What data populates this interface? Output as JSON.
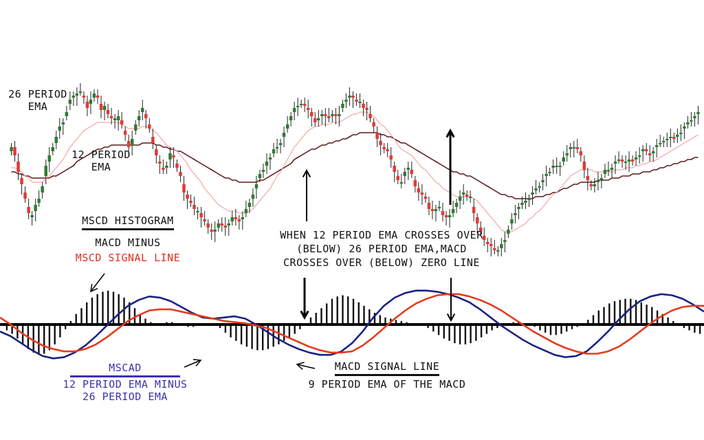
{
  "colors": {
    "bull": "#2e7d32",
    "bear": "#e53935",
    "ema26": "#5a1a1a",
    "ema12": "#f2a6a6",
    "macd": "#1a237e",
    "signal": "#e53a1e",
    "hist": "#111111"
  },
  "annotations": {
    "ema26": [
      "26 PERIOD",
      "EMA"
    ],
    "ema12": [
      "12 PERIOD",
      "EMA"
    ],
    "histogram_title": "MSCD HISTOGRAM",
    "histogram_desc1": "MACD MINUS",
    "histogram_desc2": "MSCD SIGNAL LINE",
    "crossover": [
      "WHEN 12 PERIOD EMA CROSSES OVER",
      "(BELOW) 26 PERIOD EMA,MACD",
      "CROSSES OVER (BELOW) ZERO LINE"
    ],
    "signal_title": "MACD SIGNAL LINE",
    "signal_desc": "9 PERIOD EMA OF THE MACD",
    "macd_title": "MSCAD",
    "macd_desc": [
      "12 PERIOD EMA MINUS",
      "26 PERIOD EMA"
    ]
  },
  "chart_data": [
    {
      "type": "candlestick",
      "title": "",
      "x": [
        1,
        2,
        3,
        4,
        5,
        6,
        7,
        8,
        9,
        10,
        11,
        12,
        13,
        14,
        15,
        16,
        17,
        18,
        19,
        20,
        21,
        22,
        23,
        24,
        25,
        26,
        27,
        28,
        29,
        30,
        31,
        32,
        33,
        34,
        35,
        36,
        37,
        38,
        39,
        40,
        41,
        42,
        43,
        44,
        45,
        46,
        47,
        48,
        49,
        50,
        51,
        52,
        53,
        54,
        55,
        56,
        57,
        58,
        59,
        60,
        61,
        62,
        63,
        64,
        65,
        66,
        67,
        68,
        69,
        70,
        71,
        72,
        73,
        74,
        75,
        76,
        77,
        78,
        79,
        80,
        81,
        82,
        83,
        84,
        85,
        86,
        87,
        88,
        89,
        90,
        91,
        92,
        93,
        94,
        95,
        96,
        97,
        98,
        99,
        100,
        101,
        102,
        103,
        104,
        105,
        106,
        107,
        108,
        109,
        110,
        111,
        112,
        113,
        114,
        115,
        116,
        117,
        118,
        119,
        120,
        121,
        122,
        123,
        124,
        125,
        126,
        127,
        128,
        129,
        130,
        131,
        132,
        133,
        134,
        135,
        136,
        137,
        138,
        139,
        140,
        141,
        142,
        143,
        144,
        145,
        146,
        147,
        148,
        149,
        150,
        151,
        152,
        153,
        154,
        155,
        156,
        157,
        158,
        159,
        160,
        161,
        162,
        163,
        164,
        165,
        166,
        167,
        168,
        169,
        170,
        171,
        172,
        173,
        174,
        175,
        176,
        177,
        178,
        179,
        180,
        181,
        182,
        183,
        184,
        185,
        186,
        187,
        188,
        189,
        190,
        191,
        192,
        193,
        194,
        195,
        196,
        197,
        198,
        199,
        200
      ],
      "close": [
        62,
        58,
        50,
        44,
        37,
        30,
        29,
        34,
        37,
        43,
        53,
        58,
        62,
        67,
        72,
        74,
        79,
        85,
        87,
        88,
        89,
        86,
        81,
        85,
        88,
        86,
        80,
        82,
        78,
        76,
        76,
        77,
        73,
        68,
        62,
        66,
        73,
        77,
        81,
        76,
        71,
        64,
        58,
        54,
        51,
        53,
        59,
        57,
        52,
        48,
        40,
        37,
        35,
        32,
        31,
        28,
        26,
        23,
        21,
        22,
        25,
        24,
        23,
        25,
        28,
        27,
        26,
        28,
        32,
        35,
        39,
        44,
        49,
        51,
        55,
        57,
        61,
        62,
        64,
        69,
        73,
        77,
        81,
        82,
        83,
        82,
        80,
        77,
        74,
        76,
        78,
        77,
        76,
        78,
        77,
        78,
        83,
        85,
        87,
        86,
        84,
        84,
        81,
        80,
        76,
        72,
        66,
        63,
        61,
        60,
        56,
        50,
        46,
        45,
        50,
        52,
        49,
        43,
        40,
        39,
        37,
        32,
        31,
        32,
        33,
        29,
        28,
        29,
        32,
        35,
        38,
        40,
        38,
        38,
        30,
        25,
        21,
        17,
        15,
        14,
        12,
        12,
        15,
        17,
        22,
        27,
        30,
        33,
        35,
        36,
        37,
        40,
        42,
        43,
        46,
        49,
        50,
        53,
        53,
        53,
        57,
        59,
        62,
        62,
        61,
        58,
        51,
        46,
        43,
        44,
        46,
        47,
        51,
        51,
        52,
        55,
        56,
        55,
        55,
        56,
        55,
        57,
        58,
        61,
        60,
        58,
        60,
        63,
        64,
        65,
        66,
        67,
        66,
        68,
        69,
        72,
        74,
        75,
        77,
        79
      ],
      "open": [
        60,
        62,
        55,
        47,
        40,
        33,
        28,
        31,
        35,
        40,
        48,
        55,
        60,
        64,
        70,
        73,
        77,
        83,
        86,
        87,
        89,
        87,
        84,
        83,
        86,
        87,
        83,
        80,
        80,
        77,
        75,
        75,
        75,
        70,
        65,
        63,
        70,
        75,
        79,
        78,
        73,
        67,
        61,
        55,
        52,
        52,
        56,
        58,
        54,
        50,
        44,
        39,
        36,
        34,
        31,
        30,
        27,
        25,
        22,
        21,
        23,
        25,
        24,
        24,
        26,
        28,
        27,
        27,
        30,
        33,
        37,
        42,
        47,
        50,
        53,
        56,
        59,
        62,
        63,
        67,
        71,
        75,
        79,
        82,
        83,
        83,
        81,
        79,
        76,
        75,
        77,
        78,
        77,
        77,
        78,
        77,
        81,
        84,
        86,
        87,
        85,
        84,
        83,
        81,
        78,
        74,
        69,
        65,
        62,
        61,
        58,
        53,
        48,
        45,
        48,
        51,
        51,
        46,
        42,
        40,
        38,
        35,
        32,
        31,
        33,
        31,
        29,
        28,
        30,
        33,
        36,
        39,
        39,
        38,
        33,
        28,
        23,
        19,
        16,
        15,
        13,
        12,
        13,
        16,
        20,
        25,
        29,
        32,
        34,
        35,
        37,
        39,
        41,
        43,
        45,
        48,
        50,
        52,
        53,
        53,
        55,
        58,
        61,
        62,
        62,
        60,
        55,
        48,
        44,
        43,
        45,
        47,
        49,
        51,
        51,
        54,
        56,
        56,
        55,
        55,
        56,
        56,
        58,
        60,
        61,
        59,
        59,
        62,
        64,
        65,
        66,
        67,
        67,
        67,
        69,
        71,
        73,
        75,
        76,
        78
      ],
      "ema26": [
        50,
        50,
        49,
        49,
        48,
        48,
        47,
        47,
        47,
        47,
        47,
        47,
        48,
        48,
        49,
        50,
        51,
        52,
        53,
        55,
        56,
        57,
        58,
        59,
        60,
        61,
        61,
        62,
        62,
        63,
        63,
        63,
        63,
        63,
        63,
        63,
        63,
        63,
        64,
        64,
        64,
        64,
        63,
        63,
        62,
        62,
        61,
        61,
        60,
        60,
        59,
        58,
        57,
        56,
        55,
        54,
        53,
        52,
        51,
        50,
        49,
        48,
        47,
        47,
        46,
        46,
        45,
        45,
        45,
        45,
        45,
        45,
        46,
        46,
        47,
        48,
        49,
        50,
        51,
        52,
        53,
        54,
        56,
        57,
        58,
        59,
        60,
        61,
        61,
        62,
        63,
        63,
        64,
        64,
        65,
        65,
        66,
        66,
        67,
        68,
        68,
        69,
        69,
        69,
        69,
        69,
        69,
        68,
        68,
        67,
        67,
        66,
        65,
        64,
        64,
        63,
        62,
        61,
        60,
        59,
        58,
        57,
        56,
        55,
        54,
        53,
        52,
        51,
        50,
        50,
        49,
        49,
        48,
        48,
        47,
        46,
        45,
        44,
        43,
        42,
        41,
        40,
        39,
        39,
        38,
        38,
        37,
        37,
        37,
        37,
        37,
        37,
        38,
        38,
        38,
        39,
        39,
        40,
        40,
        41,
        42,
        42,
        43,
        44,
        44,
        45,
        45,
        45,
        45,
        45,
        46,
        46,
        46,
        46,
        47,
        47,
        47,
        48,
        48,
        48,
        49,
        49,
        49,
        50,
        50,
        50,
        51,
        51,
        52,
        52,
        53,
        53,
        54,
        54,
        55,
        55,
        56,
        56,
        57,
        57
      ],
      "ema12": [
        52,
        52,
        51,
        50,
        48,
        47,
        45,
        45,
        45,
        45,
        47,
        48,
        50,
        52,
        54,
        56,
        59,
        62,
        64,
        66,
        68,
        70,
        71,
        72,
        73,
        74,
        74,
        74,
        74,
        74,
        74,
        74,
        73,
        72,
        71,
        71,
        71,
        71,
        72,
        72,
        71,
        70,
        69,
        67,
        65,
        63,
        62,
        61,
        60,
        58,
        56,
        54,
        51,
        49,
        47,
        45,
        42,
        40,
        38,
        36,
        34,
        33,
        32,
        31,
        31,
        31,
        30,
        30,
        30,
        31,
        32,
        34,
        36,
        38,
        40,
        42,
        45,
        48,
        50,
        53,
        56,
        59,
        62,
        64,
        66,
        68,
        70,
        71,
        72,
        72,
        73,
        73,
        73,
        74,
        74,
        74,
        75,
        76,
        77,
        78,
        78,
        79,
        79,
        79,
        78,
        77,
        75,
        73,
        72,
        70,
        68,
        66,
        63,
        61,
        60,
        59,
        58,
        56,
        54,
        52,
        51,
        49,
        47,
        45,
        44,
        42,
        41,
        40,
        39,
        38,
        38,
        38,
        38,
        38,
        37,
        36,
        34,
        32,
        30,
        28,
        26,
        24,
        22,
        21,
        21,
        21,
        22,
        23,
        24,
        25,
        27,
        28,
        30,
        31,
        33,
        35,
        37,
        39,
        40,
        42,
        44,
        46,
        48,
        49,
        50,
        51,
        51,
        51,
        51,
        50,
        50,
        50,
        50,
        50,
        50,
        51,
        51,
        51,
        52,
        52,
        52,
        53,
        53,
        54,
        54,
        55,
        55,
        56,
        57,
        58,
        59,
        60,
        61,
        62,
        63,
        64,
        65,
        66,
        67,
        68
      ]
    },
    {
      "type": "line",
      "title": "",
      "series": [
        {
          "name": "MSCAD",
          "values": [
            -0.6,
            -1.0,
            -1.6,
            -2.2,
            -2.7,
            -2.9,
            -2.8,
            -2.4,
            -1.8,
            -1.0,
            -0.1,
            0.8,
            1.6,
            2.1,
            2.4,
            2.3,
            2.0,
            1.5,
            1.0,
            0.6,
            0.5,
            0.6,
            0.7,
            0.5,
            0.0,
            -0.6,
            -1.2,
            -1.7,
            -2.1,
            -2.4,
            -2.6,
            -2.6,
            -2.3,
            -1.6,
            -0.6,
            0.6,
            1.6,
            2.3,
            2.7,
            2.9,
            2.9,
            2.8,
            2.6,
            2.3,
            1.9,
            1.3,
            0.6,
            -0.1,
            -0.7,
            -1.3,
            -1.8,
            -2.2,
            -2.6,
            -2.8,
            -2.7,
            -2.3,
            -1.5,
            -0.6,
            0.4,
            1.3,
            2.0,
            2.4,
            2.6,
            2.5,
            2.2,
            1.7,
            1.1
          ]
        },
        {
          "name": "MACD SIGNAL LINE",
          "values": [
            0.6,
            0.0,
            -0.7,
            -1.3,
            -1.8,
            -2.1,
            -2.3,
            -2.3,
            -2.1,
            -1.7,
            -1.1,
            -0.4,
            0.3,
            0.8,
            1.2,
            1.3,
            1.3,
            1.1,
            0.9,
            0.7,
            0.5,
            0.3,
            0.2,
            0.1,
            -0.1,
            -0.3,
            -0.7,
            -1.1,
            -1.5,
            -1.9,
            -2.2,
            -2.4,
            -2.4,
            -2.3,
            -1.8,
            -1.1,
            -0.3,
            0.5,
            1.2,
            1.8,
            2.2,
            2.5,
            2.6,
            2.6,
            2.4,
            2.1,
            1.7,
            1.2,
            0.6,
            0.0,
            -0.6,
            -1.1,
            -1.6,
            -2.0,
            -2.3,
            -2.5,
            -2.5,
            -2.3,
            -1.9,
            -1.3,
            -0.6,
            0.1,
            0.7,
            1.2,
            1.5,
            1.6,
            1.6
          ]
        }
      ]
    },
    {
      "type": "bar",
      "title": "",
      "values": [
        -0.5,
        -0.8,
        -1.2,
        -1.7,
        -2.1,
        -2.4,
        -2.6,
        -2.5,
        -2.2,
        -1.7,
        -1.1,
        -0.4,
        0.3,
        0.9,
        1.4,
        1.9,
        2.3,
        2.6,
        2.8,
        2.9,
        2.8,
        2.6,
        2.3,
        1.9,
        1.4,
        0.9,
        0.5,
        0.2,
        0.1,
        0.1,
        0.2,
        0.2,
        0.1,
        0.0,
        -0.2,
        -0.2,
        -0.1,
        0.1,
        0.1,
        0.0,
        -0.3,
        -0.7,
        -1.1,
        -1.4,
        -1.7,
        -1.9,
        -2.1,
        -2.2,
        -2.2,
        -2.1,
        -1.9,
        -1.7,
        -1.4,
        -1.1,
        -0.8,
        -0.4,
        0.1,
        0.6,
        1.0,
        1.4,
        1.8,
        2.2,
        2.4,
        2.5,
        2.4,
        2.2,
        1.9,
        1.6,
        1.3,
        1.0,
        0.8,
        0.6,
        0.5,
        0.4,
        0.3,
        0.2,
        0.1,
        0.1,
        0.0,
        -0.3,
        -0.6,
        -0.9,
        -1.2,
        -1.4,
        -1.6,
        -1.7,
        -1.7,
        -1.6,
        -1.4,
        -1.1,
        -0.8,
        -0.5,
        -0.3,
        -0.1,
        0.1,
        0.2,
        0.2,
        0.1,
        0.0,
        -0.2,
        -0.5,
        -0.7,
        -0.9,
        -0.9,
        -0.8,
        -0.6,
        -0.4,
        -0.2,
        0.0,
        0.4,
        0.8,
        1.2,
        1.5,
        1.8,
        2.0,
        2.1,
        2.2,
        2.2,
        2.1,
        1.9,
        1.7,
        1.5,
        1.2,
        0.9,
        0.6,
        0.3,
        0.0,
        -0.3,
        -0.5,
        -0.7,
        -0.8
      ]
    }
  ]
}
